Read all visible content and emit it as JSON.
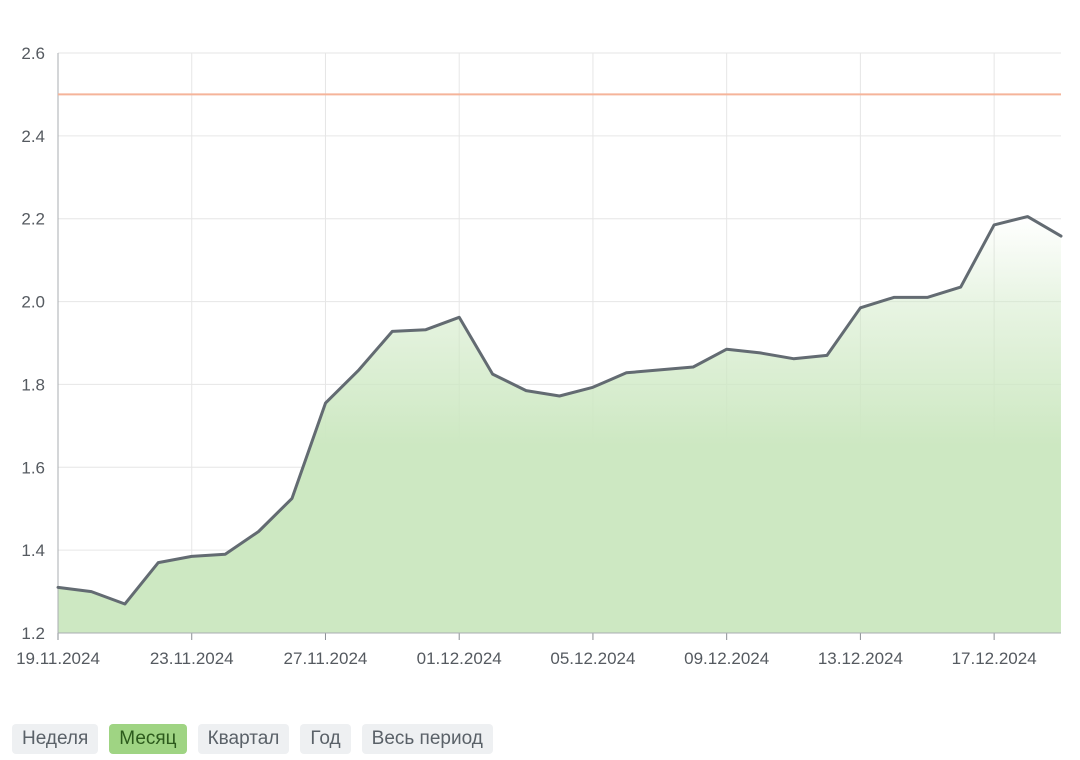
{
  "chart_data": {
    "type": "area",
    "x_dates": [
      "19.11.2024",
      "20.11.2024",
      "21.11.2024",
      "22.11.2024",
      "23.11.2024",
      "24.11.2024",
      "25.11.2024",
      "26.11.2024",
      "27.11.2024",
      "28.11.2024",
      "29.11.2024",
      "30.11.2024",
      "01.12.2024",
      "02.12.2024",
      "03.12.2024",
      "04.12.2024",
      "05.12.2024",
      "06.12.2024",
      "07.12.2024",
      "08.12.2024",
      "09.12.2024",
      "10.12.2024",
      "11.12.2024",
      "12.12.2024",
      "13.12.2024",
      "14.12.2024",
      "15.12.2024",
      "16.12.2024",
      "17.12.2024",
      "18.12.2024",
      "19.12.2024"
    ],
    "series": [
      {
        "values": [
          1.31,
          1.3,
          1.27,
          1.37,
          1.385,
          1.39,
          1.445,
          1.525,
          1.755,
          1.835,
          1.928,
          1.932,
          1.962,
          1.825,
          1.785,
          1.772,
          1.793,
          1.828,
          1.835,
          1.842,
          1.885,
          1.876,
          1.862,
          1.87,
          1.985,
          2.01,
          2.01,
          2.035,
          2.185,
          2.205,
          2.158
        ]
      }
    ],
    "reference_line": 2.5,
    "x_tick_labels": [
      "19.11.2024",
      "23.11.2024",
      "27.11.2024",
      "01.12.2024",
      "05.12.2024",
      "09.12.2024",
      "13.12.2024",
      "17.12.2024"
    ],
    "y_ticks": [
      "1.2",
      "1.4",
      "1.6",
      "1.8",
      "2.0",
      "2.2",
      "2.4",
      "2.6"
    ],
    "ylim": [
      1.2,
      2.6
    ],
    "grid": true,
    "colors": {
      "line": "#636b72",
      "area": "#cde8c2",
      "reference": "#f5b49a",
      "grid": "#e6e6e6"
    }
  },
  "periods": {
    "week": "Неделя",
    "month": "Месяц",
    "quarter": "Квартал",
    "year": "Год",
    "all": "Весь период"
  }
}
